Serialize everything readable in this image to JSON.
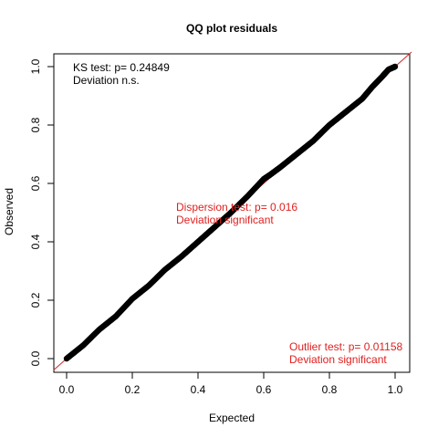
{
  "chart_data": {
    "type": "scatter",
    "title": "QQ plot residuals",
    "xlabel": "Expected",
    "ylabel": "Observed",
    "xlim": [
      0,
      1
    ],
    "ylim": [
      0,
      1
    ],
    "x_ticks": [
      "0.0",
      "0.2",
      "0.4",
      "0.6",
      "0.8",
      "1.0"
    ],
    "y_ticks": [
      "0.0",
      "0.2",
      "0.4",
      "0.6",
      "0.8",
      "1.0"
    ],
    "reference_line": {
      "intercept": 0,
      "slope": 1,
      "color": "#e0201f"
    },
    "points_color": "#000000",
    "series": [
      {
        "x": [
          0.0,
          0.05,
          0.1,
          0.15,
          0.2,
          0.25,
          0.3,
          0.35,
          0.4,
          0.45,
          0.5,
          0.55,
          0.6,
          0.62,
          0.65,
          0.7,
          0.75,
          0.8,
          0.85,
          0.9,
          0.93,
          0.96,
          0.98,
          1.0
        ],
        "y": [
          0.0,
          0.045,
          0.1,
          0.145,
          0.205,
          0.25,
          0.305,
          0.35,
          0.4,
          0.45,
          0.5,
          0.555,
          0.615,
          0.63,
          0.655,
          0.7,
          0.745,
          0.8,
          0.845,
          0.89,
          0.93,
          0.965,
          0.99,
          1.0
        ]
      }
    ],
    "annotations": [
      {
        "lines": [
          "KS test: p= 0.24849",
          "Deviation  n.s."
        ],
        "color": "#000000",
        "position": "top-left"
      },
      {
        "lines": [
          "Dispersion test: p= 0.016",
          "Deviation  significant"
        ],
        "color": "#e0201f",
        "position": "center"
      },
      {
        "lines": [
          "Outlier test: p= 0.01158",
          "Deviation  significant"
        ],
        "color": "#e0201f",
        "position": "bottom-right"
      }
    ]
  }
}
